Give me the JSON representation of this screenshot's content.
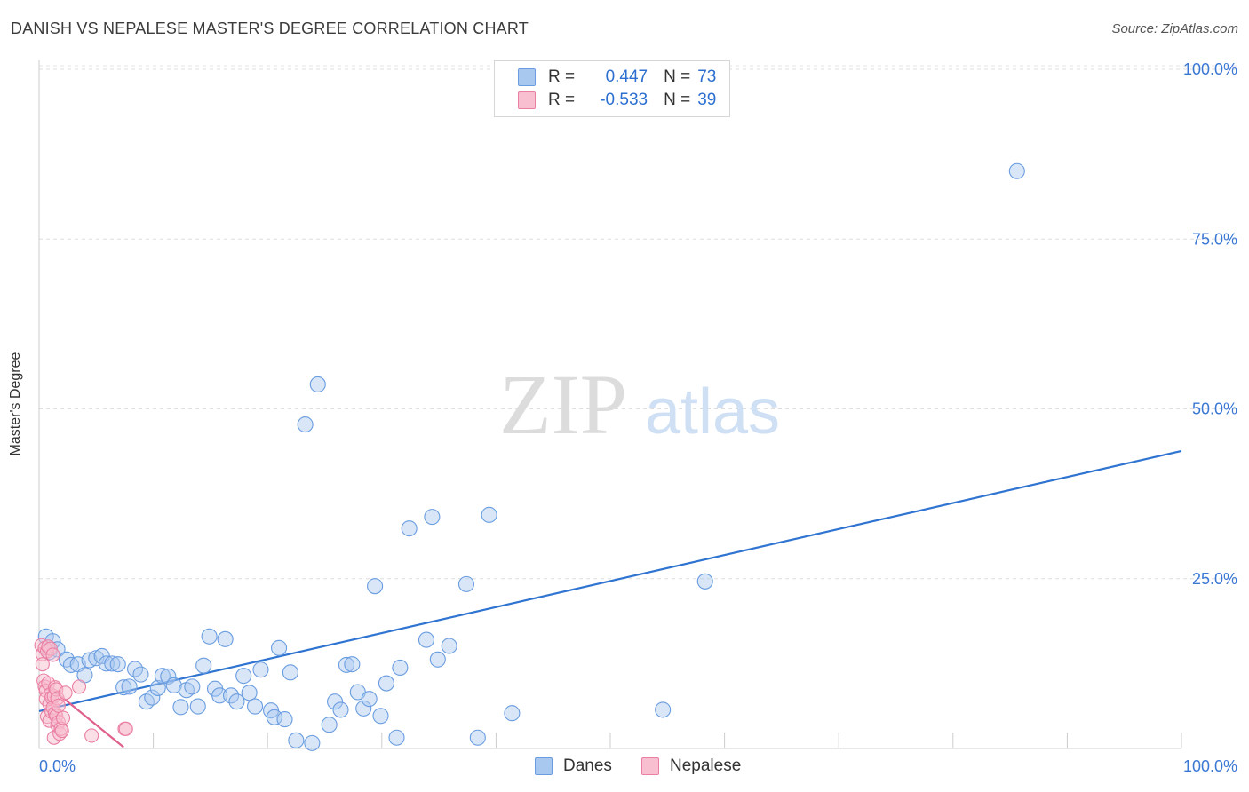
{
  "header": {
    "title": "DANISH VS NEPALESE MASTER'S DEGREE CORRELATION CHART",
    "source": "Source: ZipAtlas.com"
  },
  "watermark": {
    "zip": "ZIP",
    "atlas": "atlas"
  },
  "legend": {
    "rows": [
      {
        "r_label": "R =",
        "r_value": "0.447",
        "n_label": "N =",
        "n_value": "73",
        "color": "#a9c8ef",
        "border": "#6a9de0"
      },
      {
        "r_label": "R =",
        "r_value": "-0.533",
        "n_label": "N =",
        "n_value": "39",
        "color": "#f7bfd0",
        "border": "#ea7fa3"
      }
    ]
  },
  "bottom_legend": [
    {
      "label": "Danes",
      "color": "#a9c8ef",
      "border": "#6a9de0"
    },
    {
      "label": "Nepalese",
      "color": "#f7bfd0",
      "border": "#ea7fa3"
    }
  ],
  "chart_data": {
    "type": "scatter",
    "title": "DANISH VS NEPALESE MASTER'S DEGREE CORRELATION CHART",
    "xlabel": "",
    "ylabel": "Master's Degree",
    "xlim": [
      0,
      100
    ],
    "ylim": [
      0,
      100
    ],
    "x_tick_labels": [
      "0.0%",
      "100.0%"
    ],
    "y_ticks": [
      25,
      50,
      75,
      100
    ],
    "y_tick_labels": [
      "25.0%",
      "50.0%",
      "75.0%",
      "100.0%"
    ],
    "grid": true,
    "colors": {
      "danes": "#6a9de0",
      "danes_line": "#2f74d0",
      "nepalese": "#ea7fa3",
      "nepalese_line": "#e0608c",
      "axis_text": "#3a78d4"
    },
    "series": [
      {
        "name": "Danes",
        "points": [
          [
            0.6,
            16.5
          ],
          [
            0.9,
            14.2
          ],
          [
            1.2,
            15.8
          ],
          [
            1.6,
            14.6
          ],
          [
            2.4,
            13.1
          ],
          [
            2.8,
            12.3
          ],
          [
            3.4,
            12.4
          ],
          [
            4.0,
            10.8
          ],
          [
            4.4,
            13.0
          ],
          [
            5.0,
            13.3
          ],
          [
            5.5,
            13.6
          ],
          [
            5.9,
            12.5
          ],
          [
            6.4,
            12.5
          ],
          [
            6.9,
            12.4
          ],
          [
            7.4,
            9.0
          ],
          [
            7.9,
            9.1
          ],
          [
            8.4,
            11.7
          ],
          [
            8.9,
            10.9
          ],
          [
            9.4,
            6.9
          ],
          [
            9.9,
            7.5
          ],
          [
            10.4,
            8.9
          ],
          [
            10.8,
            10.7
          ],
          [
            11.3,
            10.6
          ],
          [
            11.8,
            9.3
          ],
          [
            12.4,
            6.1
          ],
          [
            12.9,
            8.6
          ],
          [
            13.4,
            9.1
          ],
          [
            13.9,
            6.2
          ],
          [
            14.4,
            12.2
          ],
          [
            14.9,
            16.5
          ],
          [
            15.4,
            8.8
          ],
          [
            15.8,
            7.8
          ],
          [
            16.3,
            16.1
          ],
          [
            16.8,
            7.8
          ],
          [
            17.3,
            6.9
          ],
          [
            17.9,
            10.7
          ],
          [
            18.4,
            8.2
          ],
          [
            18.9,
            6.2
          ],
          [
            19.4,
            11.6
          ],
          [
            20.3,
            5.6
          ],
          [
            20.6,
            4.6
          ],
          [
            21.0,
            14.8
          ],
          [
            21.5,
            4.3
          ],
          [
            22.0,
            11.2
          ],
          [
            22.5,
            1.2
          ],
          [
            23.3,
            47.7
          ],
          [
            23.9,
            0.8
          ],
          [
            24.4,
            53.6
          ],
          [
            25.4,
            3.5
          ],
          [
            25.9,
            6.9
          ],
          [
            26.4,
            5.7
          ],
          [
            26.9,
            12.3
          ],
          [
            27.4,
            12.4
          ],
          [
            27.9,
            8.3
          ],
          [
            28.4,
            5.9
          ],
          [
            28.9,
            7.3
          ],
          [
            29.4,
            23.9
          ],
          [
            29.9,
            4.8
          ],
          [
            30.4,
            9.6
          ],
          [
            31.3,
            1.6
          ],
          [
            31.6,
            11.9
          ],
          [
            32.4,
            32.4
          ],
          [
            33.9,
            16.0
          ],
          [
            34.4,
            34.1
          ],
          [
            34.9,
            13.1
          ],
          [
            35.9,
            15.1
          ],
          [
            37.4,
            24.2
          ],
          [
            38.4,
            1.6
          ],
          [
            39.4,
            34.4
          ],
          [
            41.4,
            5.2
          ],
          [
            54.6,
            5.7
          ],
          [
            58.3,
            24.6
          ],
          [
            85.6,
            85.0
          ]
        ],
        "trend": {
          "x": [
            0,
            100
          ],
          "y": [
            5.5,
            43.8
          ]
        }
      },
      {
        "name": "Nepalese",
        "points": [
          [
            0.2,
            15.2
          ],
          [
            0.3,
            13.9
          ],
          [
            0.3,
            12.4
          ],
          [
            0.4,
            10.0
          ],
          [
            0.5,
            9.1
          ],
          [
            0.5,
            14.8
          ],
          [
            0.6,
            8.5
          ],
          [
            0.6,
            7.3
          ],
          [
            0.7,
            14.3
          ],
          [
            0.7,
            4.7
          ],
          [
            0.8,
            15.0
          ],
          [
            0.8,
            9.6
          ],
          [
            0.9,
            6.6
          ],
          [
            0.9,
            4.1
          ],
          [
            1.0,
            14.7
          ],
          [
            1.0,
            8.0
          ],
          [
            1.1,
            5.4
          ],
          [
            1.1,
            7.5
          ],
          [
            1.2,
            6.0
          ],
          [
            1.2,
            13.8
          ],
          [
            1.3,
            1.6
          ],
          [
            1.3,
            7.7
          ],
          [
            1.4,
            9.0
          ],
          [
            1.4,
            5.2
          ],
          [
            1.5,
            4.8
          ],
          [
            1.5,
            8.7
          ],
          [
            1.6,
            3.4
          ],
          [
            1.6,
            7.4
          ],
          [
            1.7,
            6.3
          ],
          [
            1.7,
            3.9
          ],
          [
            1.8,
            2.2
          ],
          [
            1.9,
            2.9
          ],
          [
            2.0,
            2.6
          ],
          [
            2.1,
            4.5
          ],
          [
            2.3,
            8.2
          ],
          [
            3.5,
            9.1
          ],
          [
            4.6,
            1.9
          ],
          [
            7.5,
            2.9
          ],
          [
            7.6,
            2.9
          ]
        ],
        "trend": {
          "x": [
            0.3,
            7.4
          ],
          "y": [
            9.9,
            0.2
          ]
        }
      }
    ]
  }
}
